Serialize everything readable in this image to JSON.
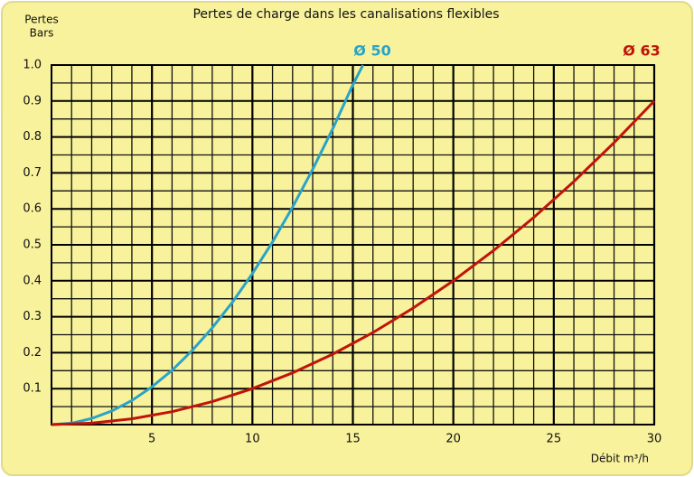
{
  "chart_data": {
    "type": "line",
    "title": "Pertes de charge dans les canalisations flexibles",
    "ylabel": [
      "Pertes",
      "Bars"
    ],
    "xlabel": "Débit m³/h",
    "xlim": [
      0,
      30
    ],
    "ylim": [
      0,
      1
    ],
    "xticks": [
      5,
      10,
      15,
      20,
      25,
      30
    ],
    "yticks": [
      0.1,
      0.2,
      0.3,
      0.4,
      0.5,
      0.6,
      0.7,
      0.8,
      0.9,
      {
        "value": 1,
        "label": "1.0"
      }
    ],
    "grid": true,
    "series": [
      {
        "name": "Ø 50",
        "color": "#2aa3c8",
        "x": [
          0,
          1,
          2,
          3,
          4,
          5,
          6,
          7,
          8,
          9,
          10,
          11,
          12,
          13,
          14,
          15,
          15.5
        ],
        "values": [
          0,
          0.004,
          0.017,
          0.038,
          0.067,
          0.105,
          0.151,
          0.206,
          0.269,
          0.34,
          0.42,
          0.508,
          0.605,
          0.71,
          0.823,
          0.945,
          1.0
        ]
      },
      {
        "name": "Ø 63",
        "color": "#c0140a",
        "x": [
          0,
          2,
          4,
          6,
          8,
          10,
          12,
          14,
          16,
          18,
          20,
          22,
          24,
          26,
          28,
          30
        ],
        "values": [
          0,
          0.004,
          0.016,
          0.036,
          0.064,
          0.1,
          0.144,
          0.196,
          0.256,
          0.324,
          0.4,
          0.484,
          0.576,
          0.676,
          0.784,
          0.9
        ]
      }
    ]
  }
}
